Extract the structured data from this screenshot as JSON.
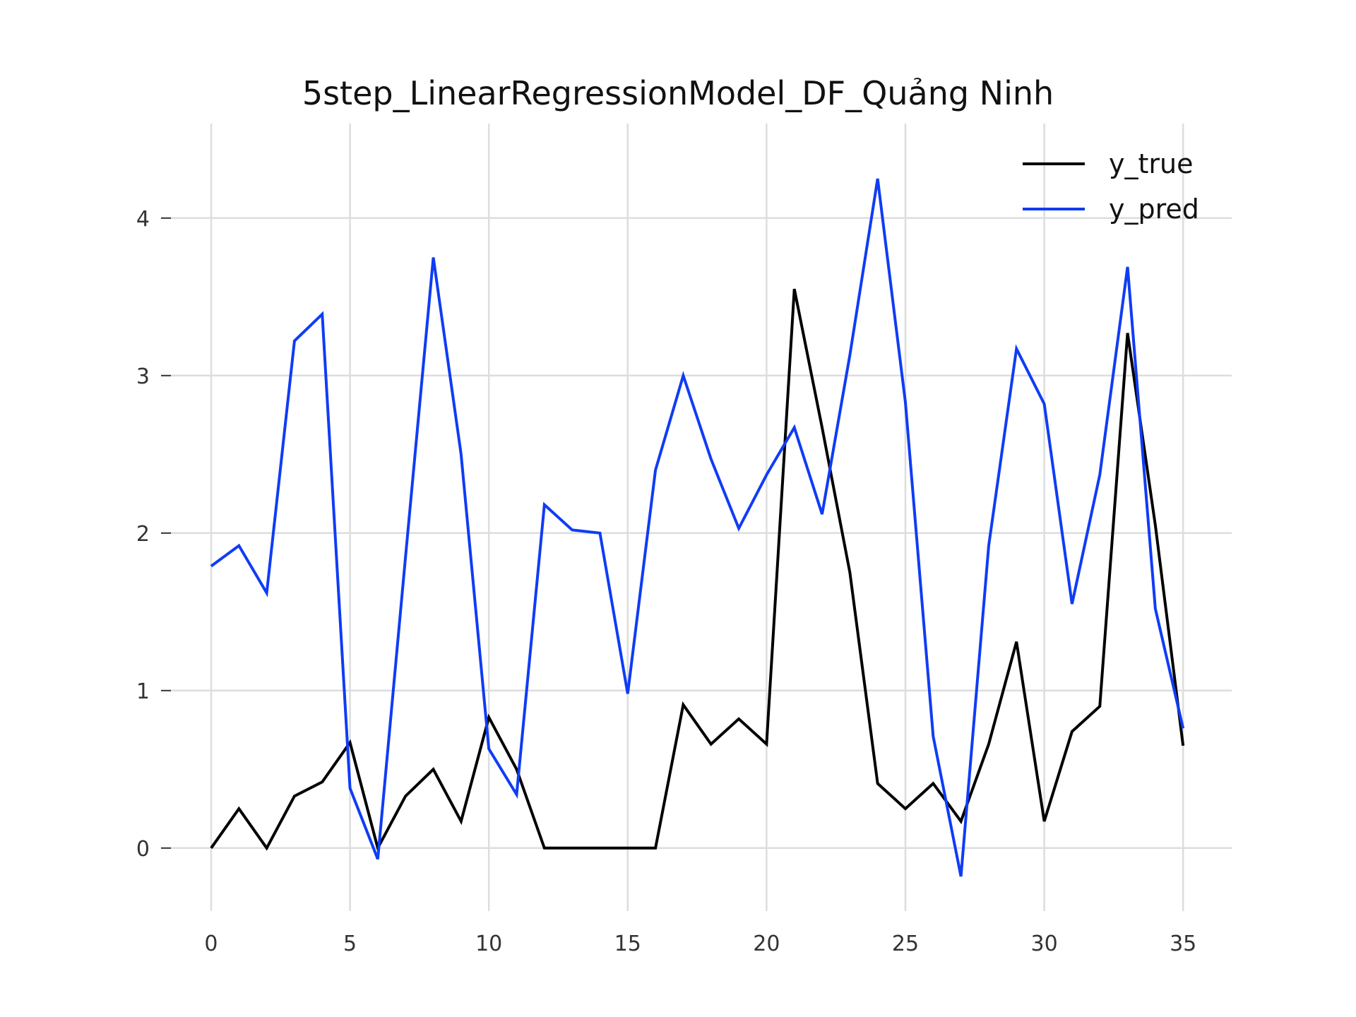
{
  "chart_data": {
    "type": "line",
    "title": "5step_LinearRegressionModel_DF_Quảng Ninh",
    "xlabel": "",
    "ylabel": "",
    "xlim": [
      -1.5,
      36.75
    ],
    "ylim": [
      -0.4,
      4.6
    ],
    "xticks": [
      0,
      5,
      10,
      15,
      20,
      25,
      30,
      35
    ],
    "yticks": [
      0,
      1,
      2,
      3,
      4
    ],
    "grid": true,
    "legend_position": "top-right",
    "x": [
      0,
      1,
      2,
      3,
      4,
      5,
      6,
      7,
      8,
      9,
      10,
      11,
      12,
      13,
      14,
      15,
      16,
      17,
      18,
      19,
      20,
      21,
      22,
      23,
      24,
      25,
      26,
      27,
      28,
      29,
      30,
      31,
      32,
      33,
      34,
      35
    ],
    "series": [
      {
        "name": "y_true",
        "color": "#000000",
        "values": [
          0,
          0.25,
          0,
          0.33,
          0.42,
          0.67,
          0,
          0.33,
          0.5,
          0.17,
          0.83,
          0.5,
          0,
          0,
          0,
          0,
          0,
          0.91,
          0.66,
          0.82,
          0.66,
          3.55,
          2.67,
          1.75,
          0.41,
          0.25,
          0.41,
          0.17,
          0.66,
          1.31,
          0.17,
          0.74,
          0.9,
          3.27,
          2.05,
          0.65
        ]
      },
      {
        "name": "y_pred",
        "color": "#0f3cf5",
        "values": [
          1.79,
          1.92,
          1.62,
          3.22,
          3.39,
          0.38,
          -0.07,
          1.85,
          3.75,
          2.5,
          0.63,
          0.34,
          2.18,
          2.02,
          2.0,
          0.98,
          2.4,
          3.0,
          2.47,
          2.03,
          2.37,
          2.67,
          2.12,
          3.13,
          4.25,
          2.83,
          0.71,
          -0.18,
          1.92,
          3.17,
          2.82,
          1.55,
          2.37,
          3.69,
          1.52,
          0.76
        ]
      }
    ]
  }
}
